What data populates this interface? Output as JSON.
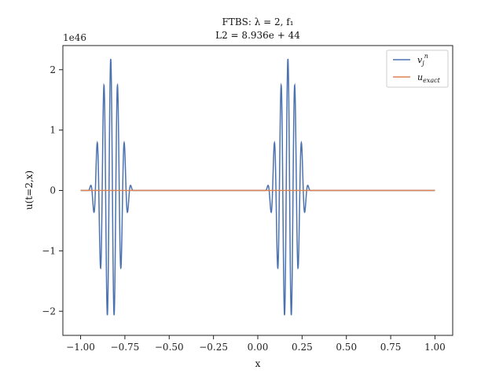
{
  "chart_data": {
    "type": "line",
    "title": "FTBS: λ = 2, f₁",
    "subtitle": "L2 = 8.936e + 44",
    "xlabel": "x",
    "ylabel": "u(t=2,x)",
    "offset_text": "1e46",
    "xlim": [
      -1.1,
      1.1
    ],
    "ylim": [
      -2.4,
      2.4
    ],
    "xticks": [
      -1.0,
      -0.75,
      -0.5,
      -0.25,
      0.0,
      0.25,
      0.5,
      0.75,
      1.0
    ],
    "xtick_labels": [
      "−1.00",
      "−0.75",
      "−0.50",
      "−0.25",
      "0.00",
      "0.25",
      "0.50",
      "0.75",
      "1.00"
    ],
    "yticks": [
      -2,
      -1,
      0,
      1,
      2
    ],
    "ytick_labels": [
      "−2",
      "−1",
      "0",
      "1",
      "2"
    ],
    "grid": false,
    "legend_position": "top-right",
    "series": [
      {
        "name": "v_j^n",
        "color": "#4c72b0",
        "packets": [
          {
            "center": -0.83,
            "halfwidth": 0.13,
            "peak": 2.18,
            "period": 0.0385
          },
          {
            "center": 0.17,
            "halfwidth": 0.13,
            "peak": 2.18,
            "period": 0.0385
          }
        ],
        "x_range": [
          -1.0,
          1.0
        ]
      },
      {
        "name": "u_exact",
        "color": "#dd8452",
        "x": [
          -1.0,
          1.0
        ],
        "y": [
          0.0,
          0.0
        ]
      }
    ]
  }
}
